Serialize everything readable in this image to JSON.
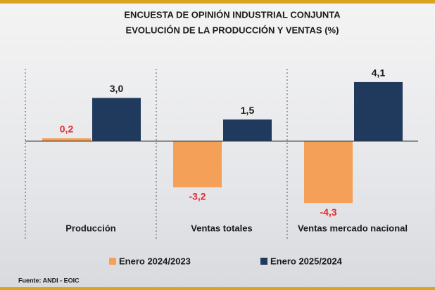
{
  "chart_data": {
    "type": "bar",
    "title": "ENCUESTA DE OPINIÓN INDUSTRIAL CONJUNTA",
    "subtitle": "EVOLUCIÓN DE LA PRODUCCIÓN Y VENTAS (%)",
    "categories": [
      "Producción",
      "Ventas totales",
      "Ventas mercado nacional"
    ],
    "series": [
      {
        "name": "Enero 2024/2023",
        "color": "#f5a058",
        "label_color": "#e8262b",
        "values": [
          0.2,
          -3.2,
          -4.3
        ],
        "value_labels": [
          "0,2",
          "-3,2",
          "-4,3"
        ]
      },
      {
        "name": "Enero 2025/2024",
        "color": "#203a5e",
        "label_color": "#1a1a1a",
        "values": [
          3.0,
          1.5,
          4.1
        ],
        "value_labels": [
          "3,0",
          "1,5",
          "4,1"
        ]
      }
    ],
    "source": "Fuente: ANDI - EOIC"
  }
}
